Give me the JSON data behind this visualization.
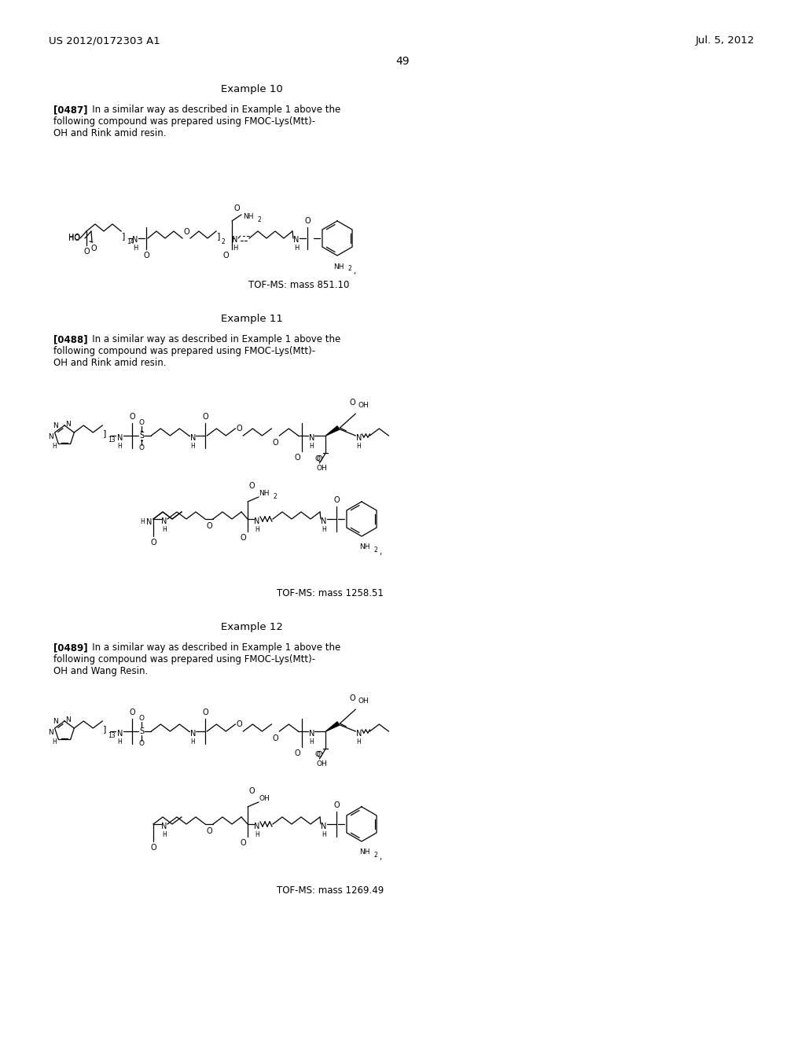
{
  "background_color": "#ffffff",
  "header_left": "US 2012/0172303 A1",
  "header_right": "Jul. 5, 2012",
  "page_number": "49",
  "example10_title": "Example 10",
  "example10_para_bold": "[0487]",
  "example10_para_rest": "   In a similar way as described in Example 1 above the\nfollowing compound was prepared using FMOC-Lys(Mtt)-\nOH and Rink amid resin.",
  "example10_tof": "TOF-MS: mass 851.10",
  "example11_title": "Example 11",
  "example11_para_bold": "[0488]",
  "example11_para_rest": "   In a similar way as described in Example 1 above the\nfollowing compound was prepared using FMOC-Lys(Mtt)-\nOH and Rink amid resin.",
  "example11_tof": "TOF-MS: mass 1258.51",
  "example12_title": "Example 12",
  "example12_para_bold": "[0489]",
  "example12_para_rest": "   In a similar way as described in Example 1 above the\nfollowing compound was prepared using FMOC-Lys(Mtt)-\nOH and Wang Resin.",
  "example12_tof": "TOF-MS: mass 1269.49",
  "text_color": "#000000",
  "fs_header": 9.5,
  "fs_body": 8.5,
  "fs_title": 9.5,
  "fs_tof": 8.5,
  "fs_page": 10,
  "fs_chem": 7,
  "fs_sub": 5.5
}
